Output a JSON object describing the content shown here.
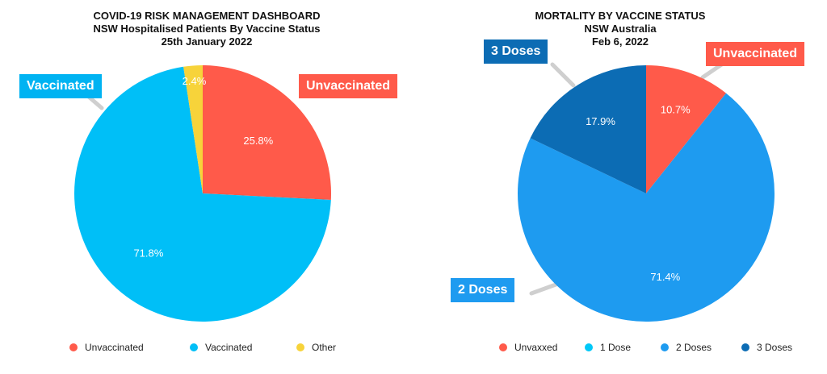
{
  "chart_data": [
    {
      "type": "pie",
      "title": "COVID-19 RISK MANAGEMENT DASHBOARD",
      "subtitle": "NSW Hospitalised Patients By Vaccine Status",
      "date": "25th January 2022",
      "slices": [
        {
          "label": "Unvaccinated",
          "value": 25.8,
          "display": "25.8%",
          "color": "#ff5a4a"
        },
        {
          "label": "Vaccinated",
          "value": 71.8,
          "display": "71.8%",
          "color": "#00bff7"
        },
        {
          "label": "Other",
          "value": 2.4,
          "display": "2.4%",
          "color": "#f7d33a"
        }
      ],
      "callouts": [
        {
          "text": "Unvaccinated",
          "color": "#ff5a4a"
        },
        {
          "text": "Vaccinated",
          "color": "#00b3f2"
        }
      ],
      "legend": [
        {
          "label": "Unvaccinated",
          "color": "#ff5a4a"
        },
        {
          "label": "Vaccinated",
          "color": "#00bff7"
        },
        {
          "label": "Other",
          "color": "#f7d33a"
        }
      ]
    },
    {
      "type": "pie",
      "title": "MORTALITY BY VACCINE STATUS",
      "subtitle": "NSW Australia",
      "date": "Feb 6, 2022",
      "slices": [
        {
          "label": "Unvaxxed",
          "value": 10.7,
          "display": "10.7%",
          "color": "#ff5a4a"
        },
        {
          "label": "1 Dose",
          "value": 0,
          "display": "",
          "color": "#00c8f8"
        },
        {
          "label": "2 Doses",
          "value": 71.4,
          "display": "71.4%",
          "color": "#1e9bf0"
        },
        {
          "label": "3 Doses",
          "value": 17.9,
          "display": "17.9%",
          "color": "#0c6cb4"
        }
      ],
      "callouts": [
        {
          "text": "Unvaccinated",
          "color": "#ff5a4a"
        },
        {
          "text": "2 Doses",
          "color": "#1e9bf0"
        },
        {
          "text": "3 Doses",
          "color": "#0c6cb4"
        }
      ],
      "legend": [
        {
          "label": "Unvaxxed",
          "color": "#ff5a4a"
        },
        {
          "label": "1 Dose",
          "color": "#00c8f8"
        },
        {
          "label": "2 Doses",
          "color": "#1e9bf0"
        },
        {
          "label": "3 Doses",
          "color": "#0c6cb4"
        }
      ]
    }
  ]
}
